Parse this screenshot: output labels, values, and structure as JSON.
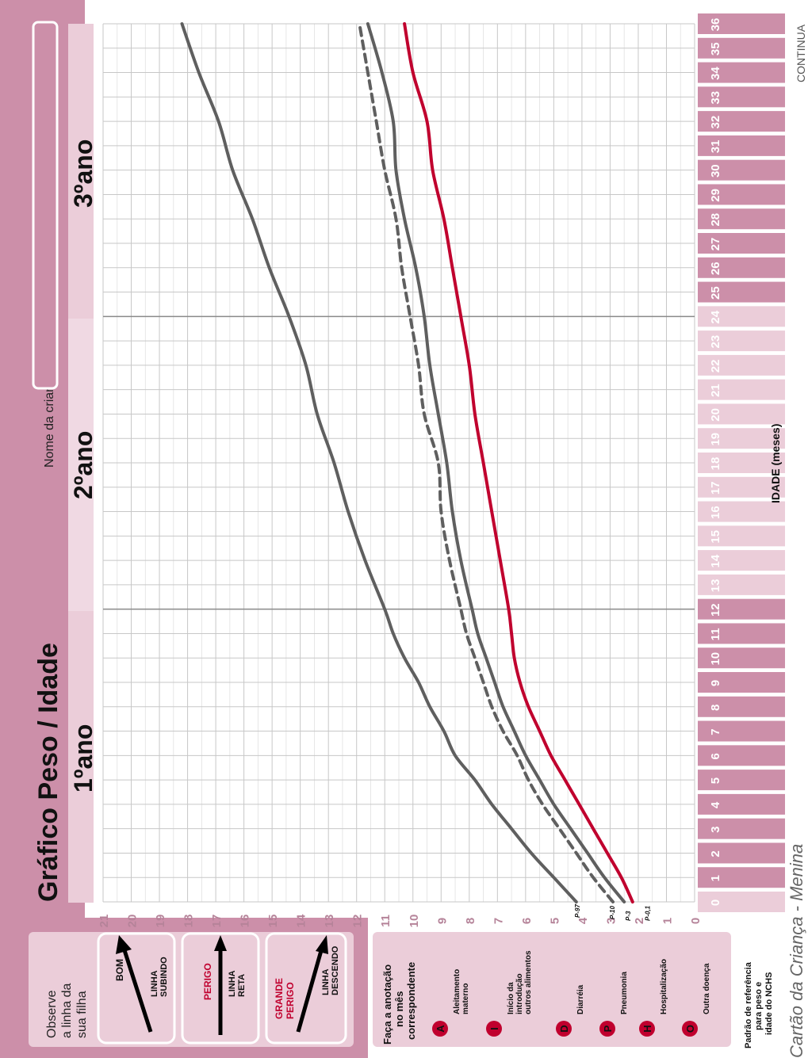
{
  "chart_data": {
    "type": "line",
    "title": "Gráfico Peso / Idade",
    "xlabel": "IDADE (meses)",
    "ylabel": "",
    "x_ticks": [
      "0",
      "1",
      "2",
      "3",
      "4",
      "5",
      "6",
      "7",
      "8",
      "9",
      "10",
      "11",
      "12",
      "13",
      "14",
      "15",
      "16",
      "17",
      "18",
      "19",
      "20",
      "21",
      "22",
      "23",
      "24",
      "25",
      "26",
      "27",
      "28",
      "29",
      "30",
      "31",
      "32",
      "33",
      "34",
      "35",
      "36"
    ],
    "y_ticks": [
      "0",
      "1",
      "2",
      "3",
      "4",
      "5",
      "6",
      "7",
      "8",
      "9",
      "10",
      "11",
      "12",
      "13",
      "14",
      "15",
      "16",
      "17",
      "18",
      "19",
      "20",
      "21"
    ],
    "xlim": [
      0,
      36
    ],
    "ylim": [
      0,
      21
    ],
    "grid": true,
    "year_labels": [
      "1ºano",
      "2ºano",
      "3ºano"
    ],
    "series": [
      {
        "name": "P-97",
        "style": "solid",
        "color": "#5f5f5f",
        "x": [
          0,
          1,
          2,
          3,
          4,
          5,
          6,
          7,
          8,
          9,
          10,
          11,
          12,
          14,
          16,
          18,
          20,
          22,
          24,
          26,
          28,
          30,
          32,
          34,
          36
        ],
        "values": [
          4.2,
          5.0,
          5.8,
          6.5,
          7.2,
          7.8,
          8.5,
          8.9,
          9.4,
          9.8,
          10.3,
          10.7,
          11.0,
          11.7,
          12.3,
          12.8,
          13.4,
          13.8,
          14.4,
          15.1,
          15.7,
          16.4,
          16.9,
          17.6,
          18.2
        ]
      },
      {
        "name": "P-10",
        "style": "dashed",
        "color": "#5f5f5f",
        "x": [
          0,
          1,
          2,
          3,
          4,
          5,
          6,
          7,
          8,
          9,
          10,
          11,
          12,
          14,
          16,
          18,
          20,
          22,
          24,
          26,
          28,
          30,
          32,
          34,
          36
        ],
        "values": [
          2.9,
          3.6,
          4.2,
          4.8,
          5.4,
          5.9,
          6.3,
          6.8,
          7.2,
          7.5,
          7.8,
          8.1,
          8.3,
          8.7,
          9.0,
          9.1,
          9.6,
          9.8,
          10.1,
          10.4,
          10.6,
          11.0,
          11.3,
          11.6,
          11.9
        ]
      },
      {
        "name": "P-3",
        "style": "solid",
        "color": "#5f5f5f",
        "x": [
          0,
          1,
          2,
          3,
          4,
          5,
          6,
          7,
          8,
          9,
          10,
          11,
          12,
          14,
          16,
          18,
          20,
          22,
          24,
          26,
          28,
          30,
          32,
          34,
          36
        ],
        "values": [
          2.5,
          3.2,
          3.8,
          4.4,
          5.0,
          5.5,
          6.0,
          6.4,
          6.8,
          7.1,
          7.4,
          7.7,
          7.9,
          8.3,
          8.6,
          8.8,
          9.1,
          9.4,
          9.6,
          9.9,
          10.3,
          10.6,
          10.7,
          11.1,
          11.6
        ]
      },
      {
        "name": "P-0,1",
        "style": "solid",
        "color": "#c0002e",
        "x": [
          0,
          1,
          2,
          3,
          4,
          5,
          6,
          7,
          8,
          9,
          10,
          11,
          12,
          14,
          16,
          18,
          20,
          22,
          24,
          26,
          28,
          30,
          32,
          34,
          36
        ],
        "values": [
          2.2,
          2.6,
          3.1,
          3.6,
          4.1,
          4.6,
          5.1,
          5.5,
          5.9,
          6.2,
          6.4,
          6.5,
          6.6,
          6.9,
          7.2,
          7.5,
          7.8,
          8.0,
          8.3,
          8.6,
          8.9,
          9.3,
          9.5,
          10.0,
          10.3
        ]
      }
    ]
  },
  "header": {
    "name_label": "Nome da criança",
    "name_value": "",
    "continua": "CONTINUA",
    "footer": "Cartão da Criança - Menina"
  },
  "legend_trend": {
    "title_line1": "Observe",
    "title_line2": "a linha da",
    "title_line3": "sua filha",
    "items": [
      {
        "status_line1": "BOM",
        "status_line2": "",
        "desc_line1": "LINHA",
        "desc_line2": "SUBINDO",
        "status_color": "#111111"
      },
      {
        "status_line1": "PERIGO",
        "status_line2": "",
        "desc_line1": "LINHA",
        "desc_line2": "RETA",
        "status_color": "#c0002e"
      },
      {
        "status_line1": "GRANDE",
        "status_line2": "PERIGO",
        "desc_line1": "LINHA",
        "desc_line2": "DESCENDO",
        "status_color": "#c0002e"
      }
    ]
  },
  "legend_notes": {
    "title_line1": "Faça a anotação",
    "title_line2": "no mês",
    "title_line3": "correspondente",
    "items": [
      {
        "letter": "A",
        "line1": "Aleitamento",
        "line2": "materno",
        "line3": ""
      },
      {
        "letter": "I",
        "line1": "Início da",
        "line2": "introdução",
        "line3": "outros alimentos"
      },
      {
        "letter": "D",
        "line1": "Diarréia",
        "line2": "",
        "line3": ""
      },
      {
        "letter": "P",
        "line1": "Pneumonia",
        "line2": "",
        "line3": ""
      },
      {
        "letter": "H",
        "line1": "Hospitalização",
        "line2": "",
        "line3": ""
      },
      {
        "letter": "O",
        "line1": "Outra doença",
        "line2": "",
        "line3": ""
      }
    ]
  },
  "reference": {
    "line1": "Padrão de referência",
    "line2": "para peso e",
    "line3": "idade do NCHS"
  },
  "colors": {
    "pink_dark": "#cc8fa9",
    "pink_mid": "#dcb3c5",
    "pink_light": "#ebcdd9",
    "red": "#c0002e",
    "gray_curve": "#5f5f5f",
    "grid": "#c7c7c7"
  }
}
